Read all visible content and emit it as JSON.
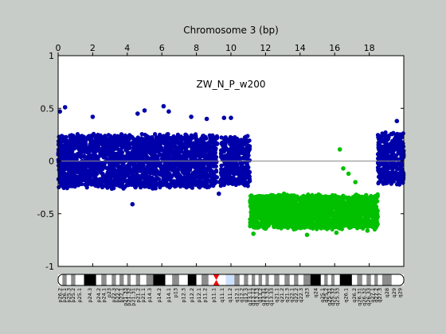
{
  "chart_data": {
    "type": "scatter",
    "title": "Chromosome 3 (bp)",
    "annotation": "ZW_N_P_w200",
    "xlabel": "",
    "ylabel": "",
    "xlim": [
      0,
      20
    ],
    "ylim": [
      -1,
      1
    ],
    "x_ticks": [
      0,
      2,
      4,
      6,
      8,
      10,
      12,
      14,
      16,
      18
    ],
    "x_tick_labels": [
      "0",
      "2",
      "4",
      "6",
      "8",
      "10",
      "12",
      "14",
      "16",
      "18"
    ],
    "y_ticks": [
      1,
      0.5,
      0,
      -0.5,
      -1
    ],
    "y_tick_labels": [
      "1",
      "0.5",
      "0",
      "-0.5",
      "-1"
    ],
    "reference_line_y": 0,
    "grid": false,
    "series": [
      {
        "color": "#0000aa",
        "segments": [
          {
            "x_start": 0.0,
            "x_end": 9.2,
            "center": 0.0,
            "spread": 0.27
          },
          {
            "x_start": 9.4,
            "x_end": 11.1,
            "center": 0.0,
            "spread": 0.25
          },
          {
            "x_start": 18.5,
            "x_end": 20.0,
            "center": 0.02,
            "spread": 0.26
          }
        ],
        "outliers": [
          {
            "x": 0.4,
            "y": 0.51
          },
          {
            "x": 0.1,
            "y": 0.47
          },
          {
            "x": 2.0,
            "y": 0.42
          },
          {
            "x": 4.6,
            "y": 0.45
          },
          {
            "x": 5.0,
            "y": 0.48
          },
          {
            "x": 6.1,
            "y": 0.52
          },
          {
            "x": 6.4,
            "y": 0.47
          },
          {
            "x": 7.7,
            "y": 0.42
          },
          {
            "x": 8.6,
            "y": 0.4
          },
          {
            "x": 9.6,
            "y": 0.41
          },
          {
            "x": 10.0,
            "y": 0.41
          },
          {
            "x": 19.6,
            "y": 0.38
          },
          {
            "x": 4.3,
            "y": -0.41
          },
          {
            "x": 9.3,
            "y": -0.31
          },
          {
            "x": 9.35,
            "y": -0.2
          }
        ]
      },
      {
        "color": "#00c000",
        "segments": [
          {
            "x_start": 11.1,
            "x_end": 18.5,
            "center": -0.48,
            "spread": 0.17
          }
        ],
        "outliers": [
          {
            "x": 16.3,
            "y": 0.11
          },
          {
            "x": 16.5,
            "y": -0.07
          },
          {
            "x": 16.8,
            "y": -0.12
          },
          {
            "x": 17.2,
            "y": -0.2
          },
          {
            "x": 11.3,
            "y": -0.69
          },
          {
            "x": 14.4,
            "y": -0.7
          },
          {
            "x": 16.1,
            "y": -0.68
          },
          {
            "x": 17.9,
            "y": -0.66
          }
        ]
      }
    ]
  },
  "ideogram": {
    "centromere_color": "#ff0000",
    "highlight_color": "#cce0ff",
    "bands": [
      {
        "label": "p26.2",
        "shade": "white",
        "x": 0.0
      },
      {
        "label": "p26.1",
        "shade": "grey",
        "x": 0.25
      },
      {
        "label": "p25.3",
        "shade": "white",
        "x": 0.5
      },
      {
        "label": "p25.2",
        "shade": "grey",
        "x": 0.75
      },
      {
        "label": "p25.1",
        "shade": "white",
        "x": 1.0
      },
      {
        "label": "p24.3",
        "shade": "black",
        "x": 1.5
      },
      {
        "label": "p24.2",
        "shade": "white",
        "x": 2.2
      },
      {
        "label": "p24.1",
        "shade": "grey",
        "x": 2.5
      },
      {
        "label": "p23",
        "shade": "white",
        "x": 2.8
      },
      {
        "label": "p22.3",
        "shade": "grey",
        "x": 3.1
      },
      {
        "label": "p22.2",
        "shade": "white",
        "x": 3.35
      },
      {
        "label": "p22.1",
        "shade": "grey",
        "x": 3.55
      },
      {
        "label": "p21.33",
        "shade": "white",
        "x": 3.8
      },
      {
        "label": "p21.32",
        "shade": "grey",
        "x": 4.0
      },
      {
        "label": "p21.31",
        "shade": "white",
        "x": 4.2
      },
      {
        "label": "p21.2",
        "shade": "grey",
        "x": 4.5
      },
      {
        "label": "p21.1",
        "shade": "white",
        "x": 4.75
      },
      {
        "label": "p14.3",
        "shade": "grey",
        "x": 5.1
      },
      {
        "label": "p14.2",
        "shade": "black",
        "x": 5.5
      },
      {
        "label": "p14.1",
        "shade": "white",
        "x": 6.2
      },
      {
        "label": "p13",
        "shade": "grey",
        "x": 6.6
      },
      {
        "label": "p12.3",
        "shade": "white",
        "x": 7.0
      },
      {
        "label": "p12.2",
        "shade": "black",
        "x": 7.5
      },
      {
        "label": "p12.1",
        "shade": "white",
        "x": 8.0
      },
      {
        "label": "p11.2",
        "shade": "grey",
        "x": 8.3
      },
      {
        "label": "p11.1",
        "shade": "white",
        "x": 8.7
      },
      {
        "label": "q11.1",
        "shade": "white",
        "x": 9.3
      },
      {
        "label": "q11.2",
        "shade": "white",
        "x": 9.7
      },
      {
        "label": "q12.1",
        "shade": "grey",
        "x": 10.2
      },
      {
        "label": "q12.2",
        "shade": "white",
        "x": 10.5
      },
      {
        "label": "q12.3",
        "shade": "grey",
        "x": 10.75
      },
      {
        "label": "q13.11",
        "shade": "white",
        "x": 11.0
      },
      {
        "label": "q13.12",
        "shade": "grey",
        "x": 11.2
      },
      {
        "label": "q13.13",
        "shade": "white",
        "x": 11.4
      },
      {
        "label": "q13.2",
        "shade": "grey",
        "x": 11.6
      },
      {
        "label": "q13.31",
        "shade": "white",
        "x": 11.8
      },
      {
        "label": "q13.32",
        "shade": "grey",
        "x": 12.0
      },
      {
        "label": "q13.33",
        "shade": "white",
        "x": 12.2
      },
      {
        "label": "q21.1",
        "shade": "grey",
        "x": 12.5
      },
      {
        "label": "q21.2",
        "shade": "white",
        "x": 12.8
      },
      {
        "label": "q21.3",
        "shade": "grey",
        "x": 13.1
      },
      {
        "label": "q22.1",
        "shade": "white",
        "x": 13.4
      },
      {
        "label": "q22.2",
        "shade": "grey",
        "x": 13.65
      },
      {
        "label": "q22.3",
        "shade": "white",
        "x": 13.9
      },
      {
        "label": "q23",
        "shade": "grey",
        "x": 14.2
      },
      {
        "label": "q24",
        "shade": "black",
        "x": 14.6
      },
      {
        "label": "q25.1",
        "shade": "white",
        "x": 15.2
      },
      {
        "label": "q25.2",
        "shade": "grey",
        "x": 15.4
      },
      {
        "label": "q25.31",
        "shade": "white",
        "x": 15.6
      },
      {
        "label": "q25.32",
        "shade": "grey",
        "x": 15.8
      },
      {
        "label": "q25.33",
        "shade": "white",
        "x": 16.0
      },
      {
        "label": "q26.1",
        "shade": "black",
        "x": 16.3
      },
      {
        "label": "q26.2",
        "shade": "white",
        "x": 17.0
      },
      {
        "label": "q26.31",
        "shade": "grey",
        "x": 17.3
      },
      {
        "label": "q26.32",
        "shade": "white",
        "x": 17.6
      },
      {
        "label": "q26.33",
        "shade": "grey",
        "x": 17.85
      },
      {
        "label": "q27.1",
        "shade": "white",
        "x": 18.1
      },
      {
        "label": "q27.2",
        "shade": "grey",
        "x": 18.3
      },
      {
        "label": "q27.3",
        "shade": "white",
        "x": 18.5
      },
      {
        "label": "q28",
        "shade": "grey",
        "x": 18.75
      },
      {
        "label": "q29",
        "shade": "white",
        "x": 19.3
      },
      {
        "label": "q29",
        "shade": "white",
        "x": 19.6
      }
    ]
  }
}
